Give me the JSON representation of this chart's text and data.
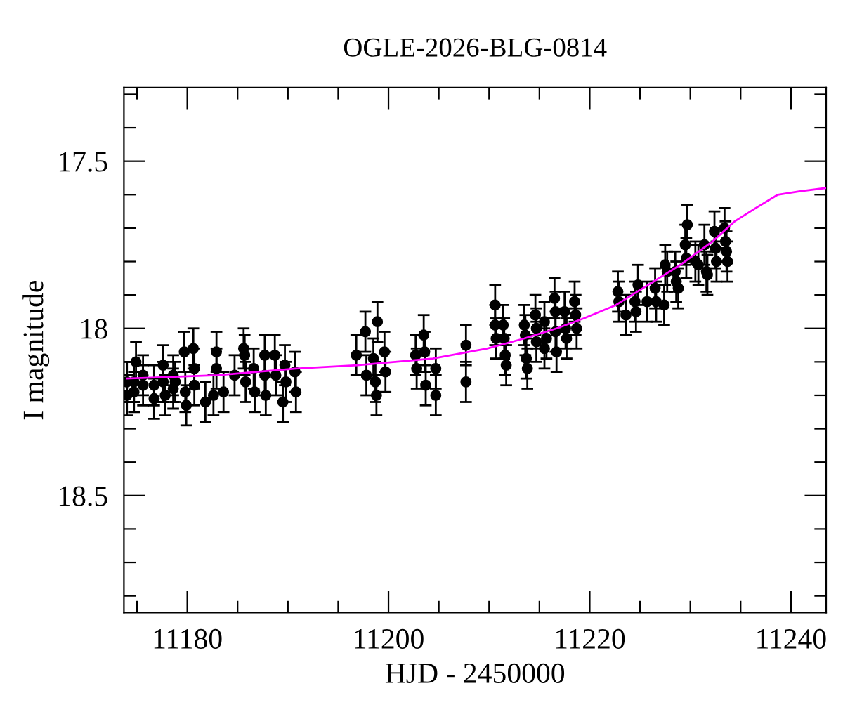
{
  "chart_data": {
    "type": "scatter",
    "title": "OGLE-2026-BLG-0814",
    "xlabel": "HJD - 2450000",
    "ylabel": "I magnitude",
    "xlim": [
      11173.7,
      11243.5
    ],
    "ylim": [
      18.85,
      17.28
    ],
    "xticks": [
      {
        "value": 11175,
        "label": null
      },
      11180,
      {
        "value": 11185,
        "label": null
      },
      {
        "value": 11190,
        "label": null
      },
      {
        "value": 11195,
        "label": null
      },
      11200,
      {
        "value": 11205,
        "label": null
      },
      {
        "value": 11210,
        "label": null
      },
      {
        "value": 11215,
        "label": null
      },
      11220,
      {
        "value": 11225,
        "label": null
      },
      {
        "value": 11230,
        "label": null
      },
      {
        "value": 11235,
        "label": null
      },
      11240
    ],
    "yticks": [
      {
        "value": 17.3,
        "label": null
      },
      {
        "value": 17.4,
        "label": null
      },
      17.5,
      {
        "value": 17.6,
        "label": null
      },
      {
        "value": 17.7,
        "label": null
      },
      {
        "value": 17.8,
        "label": null
      },
      {
        "value": 17.9,
        "label": null
      },
      18,
      {
        "value": 18.1,
        "label": null
      },
      {
        "value": 18.2,
        "label": null
      },
      {
        "value": 18.3,
        "label": null
      },
      {
        "value": 18.4,
        "label": null
      },
      18.5,
      {
        "value": 18.6,
        "label": null
      },
      {
        "value": 18.7,
        "label": null
      },
      {
        "value": 18.8,
        "label": null
      }
    ],
    "grid": false,
    "legend": false,
    "series": [
      {
        "color": "#000000",
        "marker": "circle",
        "x": [
          11174.0,
          11174.0,
          11174.7,
          11174.7,
          11174.9,
          11175.6,
          11175.6,
          11176.7,
          11176.7,
          11177.6,
          11177.6,
          11177.8,
          11178.6,
          11178.6,
          11178.8,
          11179.7,
          11179.8,
          11179.9,
          11180.6,
          11180.7,
          11180.7,
          11181.8,
          11182.6,
          11182.9,
          11182.9,
          11183.6,
          11184.7,
          11185.6,
          11185.7,
          11185.8,
          11186.6,
          11186.7,
          11187.7,
          11187.7,
          11187.8,
          11188.7,
          11188.8,
          11189.5,
          11189.7,
          11189.8,
          11190.7,
          11190.8,
          11196.8,
          11197.7,
          11197.8,
          11198.5,
          11198.7,
          11198.8,
          11198.9,
          11199.6,
          11199.7,
          11202.7,
          11202.8,
          11203.5,
          11203.6,
          11203.7,
          11204.7,
          11204.7,
          11207.7,
          11207.7,
          11210.6,
          11210.6,
          11210.7,
          11211.4,
          11211.5,
          11211.6,
          11211.7,
          11213.5,
          11213.6,
          11213.7,
          11213.8,
          11214.6,
          11214.7,
          11214.7,
          11215.5,
          11215.5,
          11215.7,
          11216.5,
          11216.6,
          11216.6,
          11216.7,
          11217.5,
          11217.6,
          11217.7,
          11218.5,
          11218.6,
          11218.7,
          11222.8,
          11222.9,
          11223.6,
          11224.5,
          11224.6,
          11224.8,
          11225.7,
          11226.5,
          11226.6,
          11227.4,
          11227.5,
          11227.7,
          11228.5,
          11228.6,
          11228.8,
          11229.5,
          11229.6,
          11229.7,
          11230.5,
          11230.8,
          11231.4,
          11231.6,
          11231.7,
          11232.4,
          11232.5,
          11232.6,
          11233.4,
          11233.5,
          11233.6,
          11233.7
        ],
        "values": [
          18.16,
          18.2,
          18.16,
          18.19,
          18.1,
          18.14,
          18.17,
          18.17,
          18.21,
          18.11,
          18.16,
          18.2,
          18.14,
          18.18,
          18.16,
          18.07,
          18.19,
          18.23,
          18.06,
          18.12,
          18.17,
          18.22,
          18.2,
          18.07,
          18.12,
          18.19,
          18.14,
          18.06,
          18.08,
          18.16,
          18.12,
          18.19,
          18.08,
          18.14,
          18.2,
          18.08,
          18.14,
          18.22,
          18.11,
          18.16,
          18.13,
          18.19,
          18.08,
          18.01,
          18.14,
          18.09,
          18.16,
          18.2,
          17.98,
          18.07,
          18.13,
          18.08,
          18.12,
          18.02,
          18.07,
          18.17,
          18.12,
          18.2,
          18.05,
          18.16,
          17.93,
          17.99,
          18.03,
          17.99,
          18.03,
          18.08,
          18.11,
          17.99,
          18.02,
          18.09,
          18.12,
          17.96,
          18.04,
          18.0,
          17.98,
          18.06,
          18.03,
          17.91,
          17.95,
          18.01,
          18.07,
          17.95,
          18.0,
          18.03,
          17.92,
          17.96,
          18.0,
          17.89,
          17.92,
          17.96,
          17.92,
          17.95,
          17.87,
          17.92,
          17.88,
          17.92,
          17.93,
          17.81,
          17.83,
          17.83,
          17.86,
          17.88,
          17.75,
          17.79,
          17.69,
          17.8,
          17.81,
          17.75,
          17.83,
          17.84,
          17.71,
          17.76,
          17.8,
          17.7,
          17.74,
          17.77,
          17.8
        ],
        "errors": [
          0.06,
          0.06,
          0.06,
          0.06,
          0.06,
          0.06,
          0.06,
          0.06,
          0.06,
          0.06,
          0.06,
          0.06,
          0.06,
          0.06,
          0.06,
          0.06,
          0.06,
          0.06,
          0.06,
          0.06,
          0.06,
          0.06,
          0.06,
          0.06,
          0.06,
          0.06,
          0.06,
          0.06,
          0.06,
          0.06,
          0.06,
          0.06,
          0.06,
          0.06,
          0.06,
          0.06,
          0.06,
          0.06,
          0.06,
          0.06,
          0.06,
          0.06,
          0.06,
          0.06,
          0.06,
          0.06,
          0.06,
          0.06,
          0.06,
          0.06,
          0.06,
          0.06,
          0.06,
          0.06,
          0.06,
          0.06,
          0.06,
          0.06,
          0.06,
          0.06,
          0.06,
          0.06,
          0.06,
          0.06,
          0.06,
          0.06,
          0.06,
          0.06,
          0.06,
          0.06,
          0.06,
          0.06,
          0.06,
          0.06,
          0.06,
          0.06,
          0.06,
          0.06,
          0.06,
          0.06,
          0.06,
          0.06,
          0.06,
          0.06,
          0.06,
          0.06,
          0.06,
          0.06,
          0.06,
          0.06,
          0.06,
          0.06,
          0.06,
          0.06,
          0.06,
          0.06,
          0.06,
          0.06,
          0.06,
          0.06,
          0.06,
          0.06,
          0.06,
          0.06,
          0.06,
          0.06,
          0.06,
          0.06,
          0.06,
          0.06,
          0.06,
          0.06,
          0.06,
          0.06,
          0.06,
          0.06,
          0.06
        ]
      },
      {
        "type": "line",
        "color": "#ff00ff",
        "marker": "none",
        "line_style": "solid",
        "x": [
          11174.0,
          11183.0,
          11190.8,
          11196.9,
          11204.4,
          11209.8,
          11213.5,
          11216.7,
          11219.4,
          11222.6,
          11225.8,
          11229.0,
          11232.2,
          11234.4,
          11236.5,
          11238.7,
          11240.8,
          11243.5
        ],
        "values": [
          18.15,
          18.14,
          18.12,
          18.11,
          18.09,
          18.06,
          18.03,
          18.0,
          17.97,
          17.93,
          17.87,
          17.81,
          17.74,
          17.68,
          17.64,
          17.6,
          17.59,
          17.58
        ]
      }
    ]
  }
}
